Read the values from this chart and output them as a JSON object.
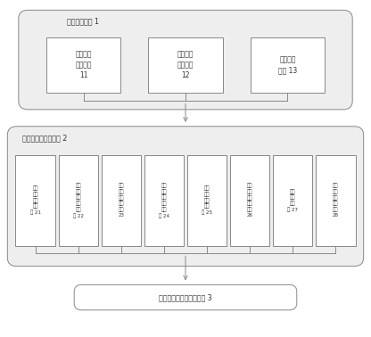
{
  "bg_color": "#ffffff",
  "box_edge_color": "#888888",
  "box_fill_color": "#ffffff",
  "outer_fill_color": "#eeeeee",
  "module1_label": "参数设置模块 1",
  "module1_children": [
    "建筑参数\n设置模块\n11",
    "预设参数\n设置模块\n12",
    "常数设置\n模块 13"
  ],
  "module2_label": "碳碳排量化处理模块 2",
  "module2_children": [
    "照明\n节能\n碳碳\n排模\n块 21",
    "建筑\n节能\n道旅\n碳碳\n排模\n块 22",
    "太阳\n能热\n水碳\n减排\n模块\n23",
    "节能\n电器\n设备\n碳碳\n排模\n块 24",
    "低碳\n交通\n碳碳\n排模\n块 25",
    "废弃\n物处\n理碳\n减排\n模块\n26",
    "节水\n碳碳\n排模\n块 27",
    "可再\n生能\n源碳\n减排\n模块\n28"
  ],
  "module3_label": "碳碳排数据统计输出模块 3",
  "figsize": [
    4.16,
    3.78
  ],
  "dpi": 100
}
